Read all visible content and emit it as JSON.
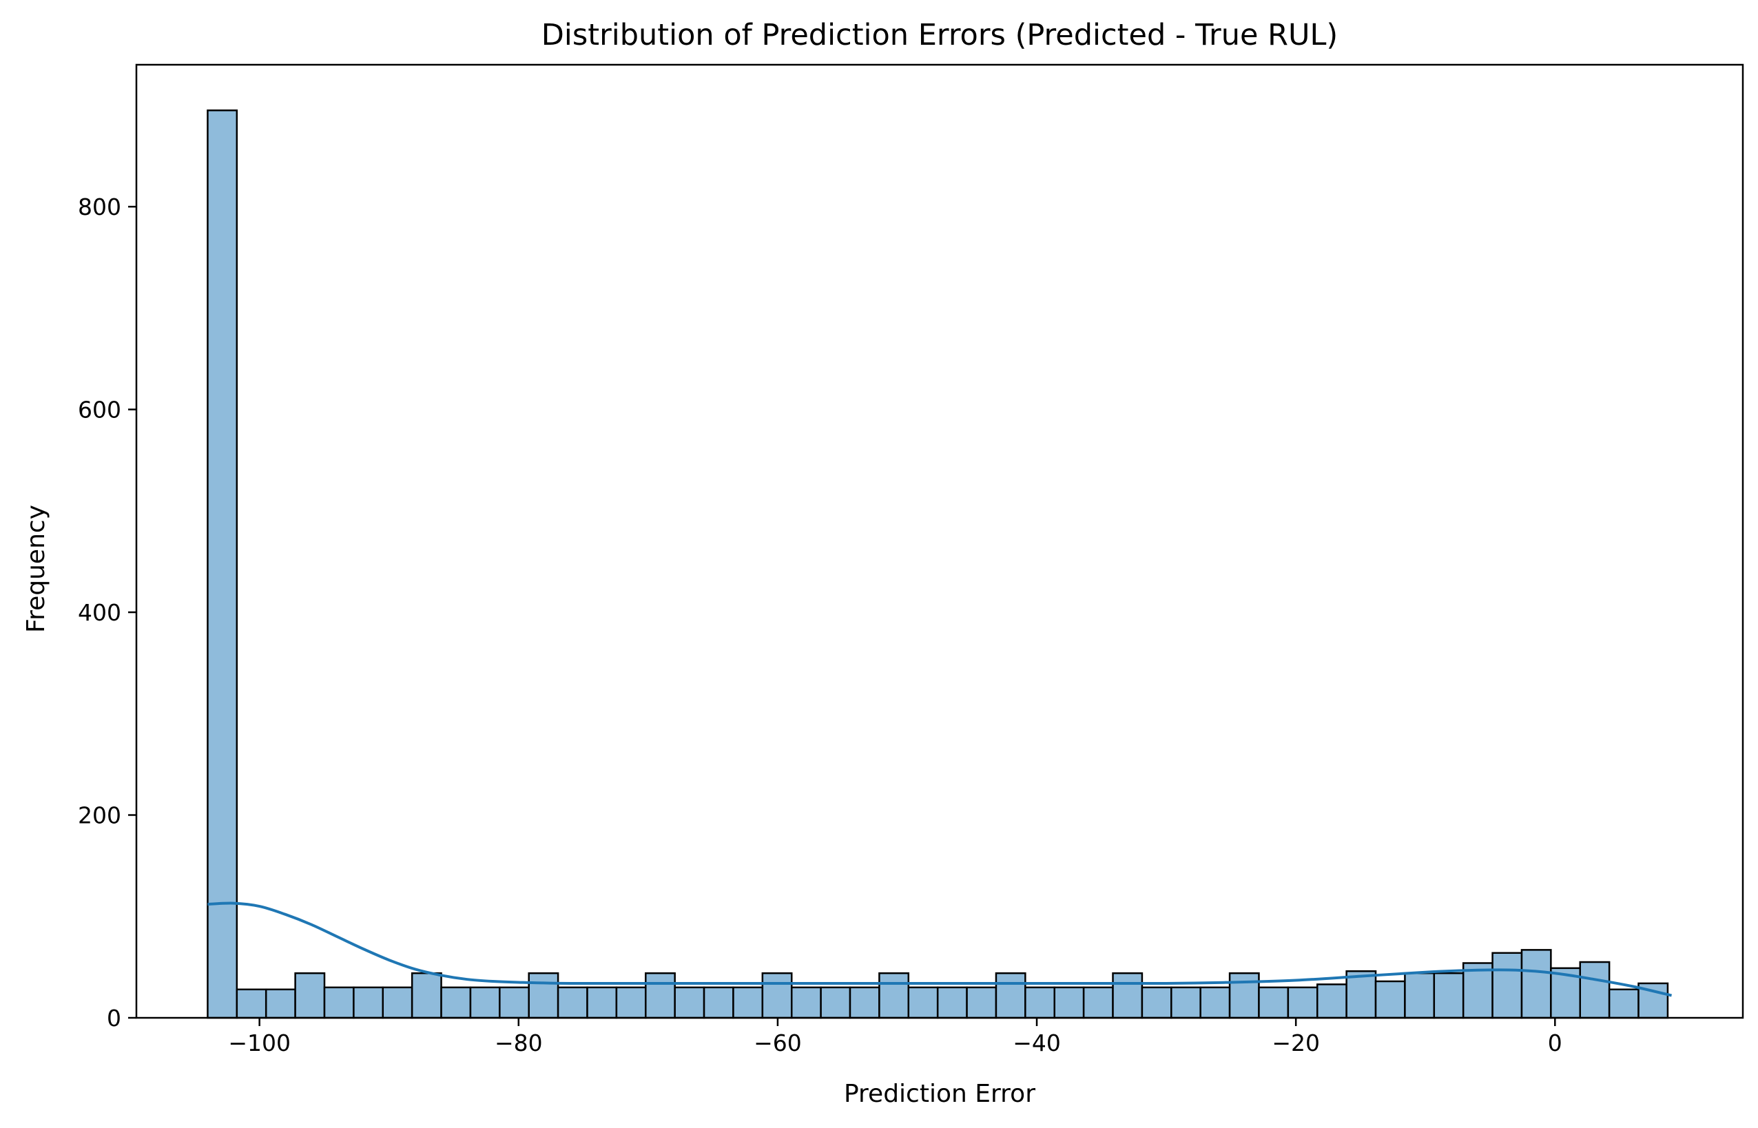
{
  "chart_data": {
    "type": "bar",
    "subtype": "histogram-with-kde",
    "title": "Distribution of Prediction Errors (Predicted - True RUL)",
    "xlabel": "Prediction Error",
    "ylabel": "Frequency",
    "xlim": [
      -109.5,
      14.5
    ],
    "ylim": [
      0,
      940
    ],
    "xticks": [
      -100,
      -80,
      -60,
      -40,
      -20,
      0
    ],
    "xtick_labels": [
      "−100",
      "−80",
      "−60",
      "−40",
      "−20",
      "0"
    ],
    "yticks": [
      0,
      200,
      400,
      600,
      800
    ],
    "ytick_labels": [
      "0",
      "200",
      "400",
      "600",
      "800"
    ],
    "grid": false,
    "legend": "none",
    "bar_color": "#8fbbdb",
    "edge_color": "#000000",
    "kde_color": "#1f77b4",
    "bin_start": -104.0,
    "bin_width": 2.254,
    "counts": [
      895,
      28,
      28,
      44,
      30,
      30,
      30,
      44,
      30,
      30,
      30,
      44,
      30,
      30,
      30,
      44,
      30,
      30,
      30,
      44,
      30,
      30,
      30,
      44,
      30,
      30,
      30,
      44,
      30,
      30,
      30,
      44,
      30,
      30,
      30,
      44,
      30,
      30,
      33,
      46,
      36,
      44,
      44,
      54,
      64,
      67,
      49,
      55,
      28,
      34
    ],
    "kde": {
      "x": [
        -104,
        -102,
        -100,
        -98,
        -96,
        -94,
        -92,
        -90,
        -88,
        -86,
        -84,
        -82,
        -80,
        -76,
        -70,
        -60,
        -50,
        -40,
        -30,
        -25,
        -20,
        -15,
        -10,
        -6,
        -3,
        0,
        3,
        6,
        9
      ],
      "y": [
        112,
        113,
        110,
        102,
        92,
        80,
        68,
        57,
        48,
        42,
        38,
        36,
        35,
        34,
        34,
        34,
        34,
        34,
        34,
        35,
        37,
        41,
        45,
        47,
        47,
        44,
        38,
        31,
        22
      ]
    }
  }
}
